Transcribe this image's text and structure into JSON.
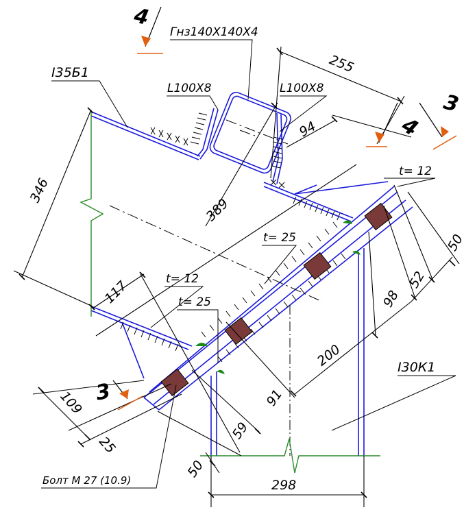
{
  "drawing": {
    "colors": {
      "linework": "#000000",
      "steel": "#1a1adc",
      "column_axis": "#2a8a2a",
      "weld": "#1a8a1a",
      "bolt_fill": "#7a3a3a",
      "section_arrow": "#e06010"
    },
    "profiles": {
      "beam": "I35Б1",
      "column": "I30К1",
      "brace": "Гнз140Х140Х4",
      "angle_left": "L100X8",
      "angle_right": "L100X8"
    },
    "plates": {
      "t_top": "t= 12",
      "t_main": "t= 25",
      "t_left_a": "t= 12",
      "t_left_b": "t= 25"
    },
    "bolt": "Болт  М 27 (10.9)",
    "sections": {
      "s4_top": "4",
      "s4_right": "4",
      "s3_right": "3",
      "s3_left": "3"
    },
    "dimensions": {
      "d255": "255",
      "d94": "94",
      "d389": "389",
      "d346": "346",
      "d117": "117",
      "d50_right": "50",
      "d52": "52",
      "d98": "98",
      "d200": "200",
      "d91": "91",
      "d59": "59",
      "d109": "109",
      "d25": "25",
      "d50_bottom": "50",
      "d298": "298"
    }
  }
}
